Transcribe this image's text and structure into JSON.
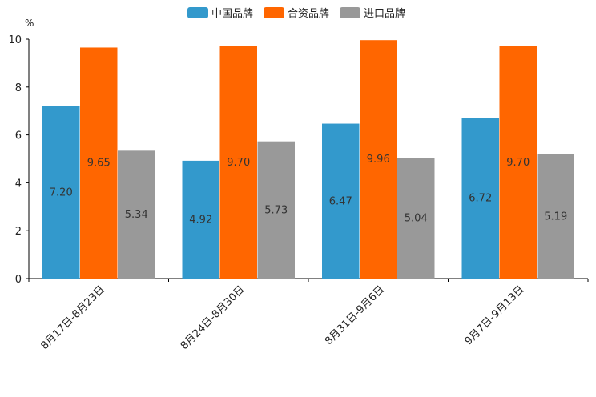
{
  "chart_data": {
    "type": "bar",
    "unit": "%",
    "categories": [
      "8月17日-8月23日",
      "8月24日-8月30日",
      "8月31日-9月6日",
      "9月7日-9月13日"
    ],
    "series": [
      {
        "name": "中国品牌",
        "color": "#3399cc",
        "values": [
          7.2,
          4.92,
          6.47,
          6.72
        ],
        "labels": [
          "7.20",
          "4.92",
          "6.47",
          "6.72"
        ]
      },
      {
        "name": "合资品牌",
        "color": "#ff6600",
        "values": [
          9.65,
          9.7,
          9.96,
          9.7
        ],
        "labels": [
          "9.65",
          "9.70",
          "9.96",
          "9.70"
        ]
      },
      {
        "name": "进口品牌",
        "color": "#999999",
        "values": [
          5.34,
          5.73,
          5.04,
          5.19
        ],
        "labels": [
          "5.34",
          "5.73",
          "5.04",
          "5.19"
        ]
      }
    ],
    "y_ticks": [
      "0",
      "2",
      "4",
      "6",
      "8",
      "10"
    ],
    "ylim": [
      0,
      10
    ],
    "legend_position": "top-center"
  }
}
